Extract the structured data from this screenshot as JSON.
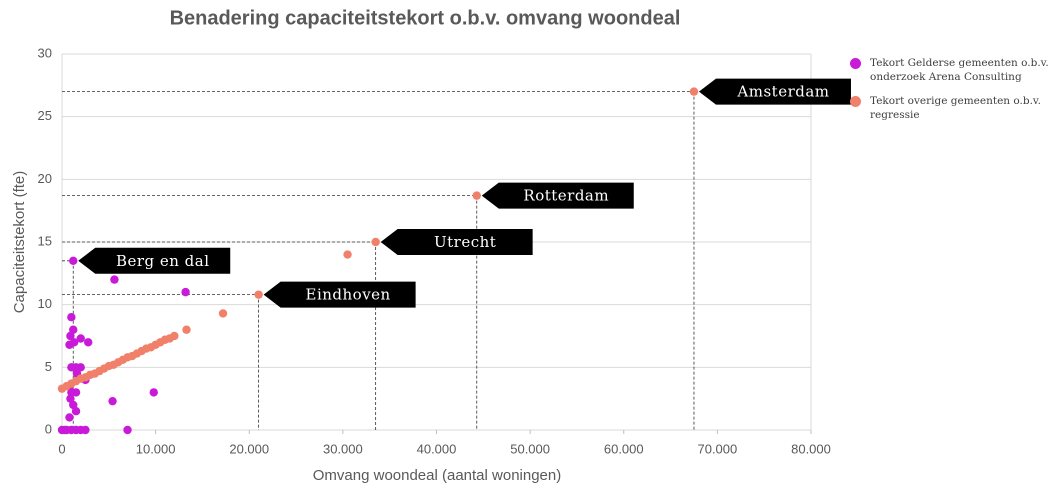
{
  "chart_data": {
    "type": "scatter",
    "title": "Benadering capaciteitstekort o.b.v. omvang woondeal",
    "x_label": "Omvang woondeal (aantal woningen)",
    "y_label": "Capaciteitstekort (fte)",
    "xlim": [
      0,
      80000
    ],
    "xticks": [
      0,
      {
        "value": 10000,
        "label": "10.000"
      },
      {
        "value": 20000,
        "label": "20.000"
      },
      {
        "value": 30000,
        "label": "30.000"
      },
      {
        "value": 40000,
        "label": "40.000"
      },
      {
        "value": 50000,
        "label": "50.000"
      },
      {
        "value": 60000,
        "label": "60.000"
      },
      {
        "value": 70000,
        "label": "70.000"
      },
      {
        "value": 80000,
        "label": "80.000"
      }
    ],
    "ylim": [
      0,
      30
    ],
    "yticks": [
      0,
      5,
      10,
      15,
      20,
      25,
      30
    ],
    "grid": true,
    "legend": "right",
    "series": [
      {
        "name": "Tekort Gelderse gemeenten o.b.v. onderzoek Arena Consulting",
        "color": "#c81ad8",
        "x": [
          1200,
          5600,
          13200,
          9800,
          5400,
          7000,
          1000,
          1200,
          900,
          800,
          1300,
          2000,
          2800,
          1000,
          1500,
          2000,
          1600,
          2500,
          800,
          1000,
          1500,
          900,
          1200,
          800,
          1500,
          0,
          300,
          500,
          1000,
          1500,
          2000,
          2500
        ],
        "values": [
          13.5,
          12,
          11,
          3,
          2.3,
          0,
          9,
          8,
          7.5,
          6.8,
          7,
          7.3,
          7,
          5,
          5,
          5,
          4.5,
          4,
          3.5,
          3,
          3,
          2.5,
          2,
          1,
          1.5,
          0,
          0,
          0,
          0,
          0,
          0,
          0
        ]
      },
      {
        "name": "Tekort overige gemeenten o.b.v. regressie",
        "color": "#f0806a",
        "x": [
          0,
          500,
          1000,
          1500,
          2000,
          2500,
          3000,
          3500,
          4000,
          4500,
          5000,
          5500,
          6000,
          6500,
          7000,
          7500,
          8000,
          8500,
          9000,
          9500,
          10000,
          10500,
          11000,
          11500,
          12000,
          13300,
          17200,
          21000,
          30500,
          33500,
          44300,
          67500
        ],
        "values": [
          3.3,
          3.5,
          3.7,
          3.9,
          4.1,
          4.2,
          4.4,
          4.5,
          4.7,
          4.9,
          5.1,
          5.2,
          5.4,
          5.6,
          5.8,
          5.9,
          6.1,
          6.3,
          6.5,
          6.6,
          6.8,
          7.0,
          7.2,
          7.3,
          7.5,
          8,
          9.3,
          10.8,
          14,
          15,
          18.7,
          27
        ]
      }
    ],
    "annotations": [
      {
        "text": "Amsterdam",
        "x": 67500,
        "y": 27
      },
      {
        "text": "Rotterdam",
        "x": 44300,
        "y": 18.7
      },
      {
        "text": "Utrecht",
        "x": 33500,
        "y": 15
      },
      {
        "text": "Eindhoven",
        "x": 21000,
        "y": 10.8
      },
      {
        "text": "Berg en dal",
        "x": 1200,
        "y": 13.5
      }
    ]
  }
}
